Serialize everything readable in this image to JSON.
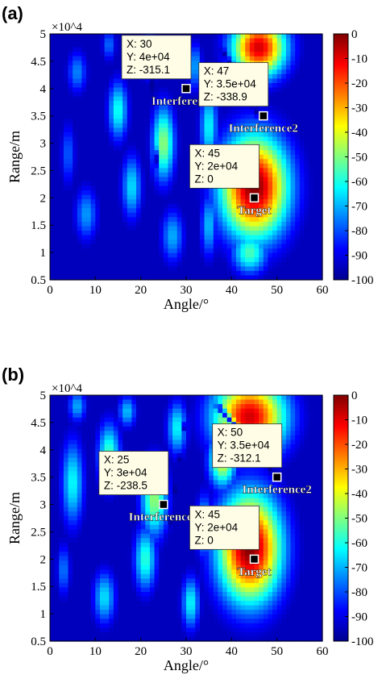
{
  "panels": [
    {
      "panel_label": "(a)",
      "chart_data": {
        "type": "heatmap",
        "xlabel": "Angle/°",
        "ylabel": "Range/m",
        "y_exponent": "×10^4",
        "xlim": [
          0,
          60
        ],
        "ylim": [
          0.5,
          5
        ],
        "xticks": [
          "0",
          "10",
          "20",
          "30",
          "40",
          "50",
          "60"
        ],
        "yticks": [
          "0.5",
          "1",
          "1.5",
          "2",
          "2.5",
          "3",
          "3.5",
          "4",
          "4.5",
          "5"
        ],
        "colorbar": {
          "range": [
            -100,
            0
          ],
          "ticks": [
            "0",
            "-10",
            "-20",
            "-30",
            "-40",
            "-50",
            "-60",
            "-70",
            "-80",
            "-90",
            "-100"
          ]
        },
        "points": [
          {
            "name": "Interference1",
            "x": 30,
            "y": 4.0,
            "tip_lines": [
              "X: 30",
              "Y: 4e+04",
              "Z: -315.1"
            ]
          },
          {
            "name": "Interference2",
            "x": 47,
            "y": 3.5,
            "tip_lines": [
              "X: 47",
              "Y: 3.5e+04",
              "Z: -338.9"
            ]
          },
          {
            "name": "Target",
            "x": 45,
            "y": 2.0,
            "tip_lines": [
              "X: 45",
              "Y: 2e+04",
              "Z: 0"
            ]
          }
        ]
      }
    },
    {
      "panel_label": "(b)",
      "chart_data": {
        "type": "heatmap",
        "xlabel": "Angle/°",
        "ylabel": "Range/m",
        "y_exponent": "×10^4",
        "xlim": [
          0,
          60
        ],
        "ylim": [
          0.5,
          5
        ],
        "xticks": [
          "0",
          "10",
          "20",
          "30",
          "40",
          "50",
          "60"
        ],
        "yticks": [
          "0.5",
          "1",
          "1.5",
          "2",
          "2.5",
          "3",
          "3.5",
          "4",
          "4.5",
          "5"
        ],
        "colorbar": {
          "range": [
            -100,
            0
          ],
          "ticks": [
            "0",
            "-10",
            "-20",
            "-30",
            "-40",
            "-50",
            "-60",
            "-70",
            "-80",
            "-90",
            "-100"
          ]
        },
        "points": [
          {
            "name": "Interference1",
            "x": 25,
            "y": 3.0,
            "tip_lines": [
              "X: 25",
              "Y: 3e+04",
              "Z: -238.5"
            ]
          },
          {
            "name": "Interference2",
            "x": 50,
            "y": 3.5,
            "tip_lines": [
              "X: 50",
              "Y: 3.5e+04",
              "Z: -312.1"
            ]
          },
          {
            "name": "Target",
            "x": 45,
            "y": 2.0,
            "tip_lines": [
              "X: 45",
              "Y: 2e+04",
              "Z: 0"
            ]
          }
        ]
      }
    }
  ]
}
